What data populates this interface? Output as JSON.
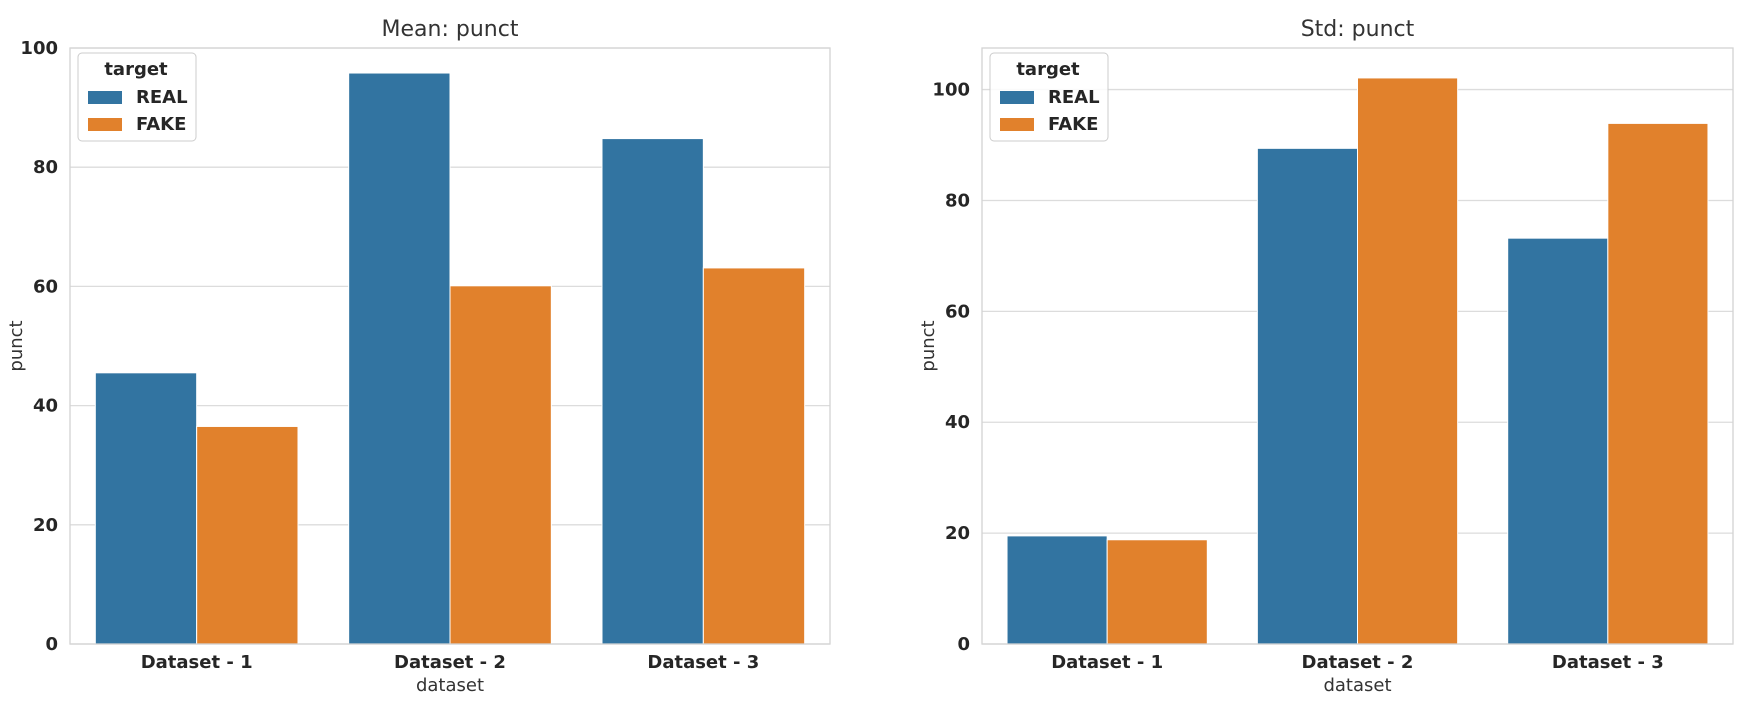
{
  "colors": {
    "REAL": "#3274a1",
    "FAKE": "#e1812c"
  },
  "chart_data": [
    {
      "type": "bar",
      "title": "Mean: punct",
      "xlabel": "dataset",
      "ylabel": "punct",
      "categories": [
        "Dataset - 1",
        "Dataset - 2",
        "Dataset - 3"
      ],
      "series": [
        {
          "name": "REAL",
          "values": [
            45.5,
            95.8,
            84.8
          ]
        },
        {
          "name": "FAKE",
          "values": [
            36.5,
            60.1,
            63.1
          ]
        }
      ],
      "ylim": [
        0,
        100
      ],
      "yticks": [
        0,
        20,
        40,
        60,
        80,
        100
      ],
      "legend": {
        "title": "target",
        "position": "upper-left"
      },
      "grid": true
    },
    {
      "type": "bar",
      "title": "Std: punct",
      "xlabel": "dataset",
      "ylabel": "punct",
      "categories": [
        "Dataset - 1",
        "Dataset - 2",
        "Dataset - 3"
      ],
      "series": [
        {
          "name": "REAL",
          "values": [
            19.5,
            89.4,
            73.2
          ]
        },
        {
          "name": "FAKE",
          "values": [
            18.8,
            102.1,
            93.9
          ]
        }
      ],
      "ylim": [
        0,
        107.5
      ],
      "yticks": [
        0,
        20,
        40,
        60,
        80,
        100
      ],
      "legend": {
        "title": "target",
        "position": "upper-left"
      },
      "grid": true
    }
  ]
}
